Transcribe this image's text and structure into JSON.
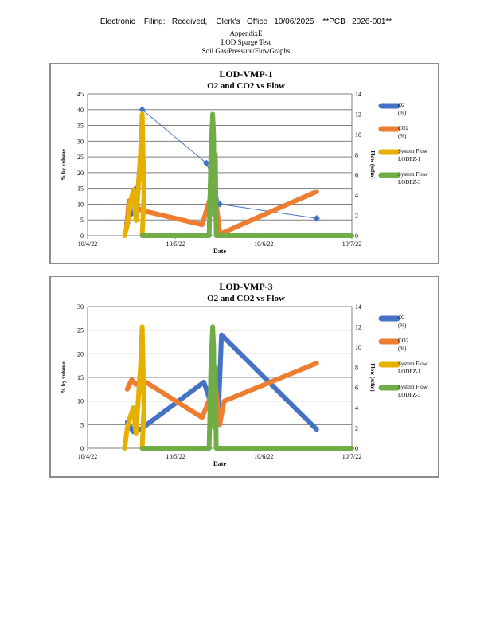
{
  "header": {
    "filing_line": "Electronic    Filing:   Received,    Clerk's   Office   10/06/2025    **PCB   2026-001**",
    "line1": "AppendixE",
    "line2": "LOD Sparge Test",
    "line3": "Soil Gas/Pressure/FlowGraphs"
  },
  "colors": {
    "o2": "#4472C4",
    "co2": "#ED7D31",
    "pz1": "#E6B000",
    "pz3": "#70AD47",
    "grid": "#7f7f7f"
  },
  "chart_data": [
    {
      "type": "line",
      "title": "LOD-VMP-1",
      "subtitle": "O2 and CO2 vs Flow",
      "xlabel": "Date",
      "ylabel": "% by volume",
      "y2label": "Flow (scfm)",
      "x_ticks": [
        "10/4/22",
        "10/5/22",
        "10/6/22",
        "10/7/22"
      ],
      "xlim": [
        0,
        3
      ],
      "ylim": [
        0,
        45
      ],
      "y_ticks": [
        0,
        5,
        10,
        15,
        20,
        25,
        30,
        35,
        40,
        45
      ],
      "y2lim": [
        0,
        14
      ],
      "y2_ticks": [
        0,
        2,
        4,
        6,
        8,
        10,
        12,
        14
      ],
      "grid": true,
      "legend_position": "right",
      "series": [
        {
          "name": "O2 (%)",
          "axis": "left",
          "color_key": "o2",
          "width": 1,
          "marker": true,
          "x": [
            0.45,
            0.5,
            0.55,
            0.62,
            1.35,
            1.45,
            1.5,
            2.6
          ],
          "y": [
            4,
            7,
            15,
            40,
            23,
            15,
            10,
            5.5
          ]
        },
        {
          "name": "CO2 (%)",
          "axis": "left",
          "color_key": "co2",
          "width": 6,
          "marker": false,
          "x": [
            0.44,
            0.47,
            0.52,
            0.58,
            0.62,
            1.3,
            1.42,
            1.47,
            1.5,
            2.6
          ],
          "y": [
            2,
            11,
            12,
            8.5,
            8,
            3.5,
            14.5,
            8,
            0.5,
            14
          ]
        },
        {
          "name": "System Flow LODPZ-1",
          "axis": "right",
          "color_key": "pz1",
          "width": 6,
          "marker": false,
          "x": [
            0.42,
            0.45,
            0.48,
            0.52,
            0.55,
            0.6,
            0.62,
            0.64,
            0.62,
            0.65
          ],
          "y": [
            0,
            1,
            3,
            4.5,
            1.5,
            8,
            12,
            4,
            0,
            0
          ]
        },
        {
          "name": "System Flow LODPZ-3",
          "axis": "right",
          "color_key": "pz3",
          "width": 6,
          "marker": false,
          "x": [
            0.62,
            1.38,
            1.39,
            1.4,
            1.42,
            1.43,
            1.44,
            1.45,
            1.46,
            3.0
          ],
          "y": [
            0,
            0,
            4,
            8,
            12,
            10,
            2,
            8,
            0,
            0
          ]
        }
      ]
    },
    {
      "type": "line",
      "title": "LOD-VMP-3",
      "subtitle": "O2 and CO2 vs Flow",
      "xlabel": "Date",
      "ylabel": "% by volume",
      "y2label": "Flow (scfm)",
      "x_ticks": [
        "10/4/22",
        "10/5/22",
        "10/6/22",
        "10/7/22"
      ],
      "xlim": [
        0,
        3
      ],
      "ylim": [
        0,
        30
      ],
      "y_ticks": [
        0,
        5,
        10,
        15,
        20,
        25,
        30
      ],
      "y2lim": [
        0,
        14
      ],
      "y2_ticks": [
        0,
        2,
        4,
        6,
        8,
        10,
        12,
        14
      ],
      "grid": true,
      "legend_position": "right",
      "series": [
        {
          "name": "O2 (%)",
          "axis": "left",
          "color_key": "o2",
          "width": 6,
          "marker": false,
          "x": [
            0.45,
            0.52,
            0.6,
            1.32,
            1.48,
            1.52,
            2.6
          ],
          "y": [
            5.5,
            3.5,
            4,
            14,
            5,
            24,
            4
          ]
        },
        {
          "name": "CO2 (%)",
          "axis": "left",
          "color_key": "co2",
          "width": 6,
          "marker": false,
          "x": [
            0.45,
            0.5,
            0.55,
            0.62,
            1.3,
            1.45,
            1.5,
            1.55,
            2.6
          ],
          "y": [
            12.5,
            14.5,
            13.5,
            14.5,
            6.5,
            13.5,
            5,
            10,
            18
          ]
        },
        {
          "name": "System Flow LODPZ-1",
          "axis": "right",
          "color_key": "pz1",
          "width": 6,
          "marker": false,
          "x": [
            0.42,
            0.45,
            0.48,
            0.52,
            0.55,
            0.6,
            0.62,
            0.64,
            0.62,
            0.65
          ],
          "y": [
            0,
            2,
            3,
            4,
            1.5,
            8,
            12,
            4,
            0,
            0
          ]
        },
        {
          "name": "System Flow LODPZ-3",
          "axis": "right",
          "color_key": "pz3",
          "width": 6,
          "marker": false,
          "x": [
            0.62,
            1.38,
            1.39,
            1.4,
            1.42,
            1.43,
            1.44,
            1.45,
            1.46,
            3.0
          ],
          "y": [
            0,
            0,
            4,
            8,
            12,
            10,
            2,
            8,
            0,
            0
          ]
        }
      ]
    }
  ]
}
